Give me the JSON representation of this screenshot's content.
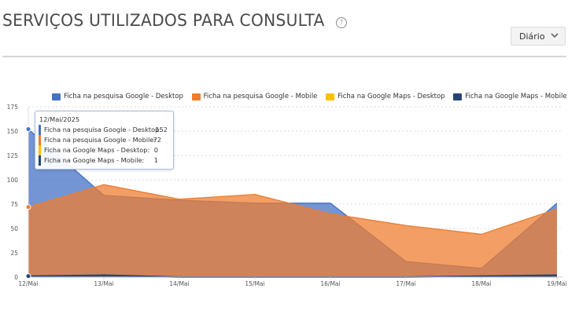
{
  "header": {
    "title": "SERVIÇOS UTILIZADOS PARA CONSULTA",
    "help_icon": "question-circle-icon",
    "period_select": {
      "value": "Diário",
      "icon": "chevron-down-icon"
    }
  },
  "legend": [
    {
      "label": "Ficha na pesquisa Google - Desktop",
      "color": "#4472c4"
    },
    {
      "label": "Ficha na pesquisa Google - Mobile",
      "color": "#ed7d31"
    },
    {
      "label": "Ficha na Google Maps - Desktop",
      "color": "#ffc000"
    },
    {
      "label": "Ficha na Google Maps - Mobile",
      "color": "#264478"
    }
  ],
  "tooltip": {
    "date": "12/Mai/2025",
    "rows": [
      {
        "label": "Ficha na pesquisa Google - Desktop:",
        "value": "152",
        "color": "#4472c4"
      },
      {
        "label": "Ficha na pesquisa Google - Mobile:",
        "value": "72",
        "color": "#ed7d31"
      },
      {
        "label": "Ficha na Google Maps - Desktop:",
        "value": "0",
        "color": "#ffc000"
      },
      {
        "label": "Ficha na Google Maps - Mobile:",
        "value": "1",
        "color": "#264478"
      }
    ]
  },
  "chart_data": {
    "type": "area",
    "title": "SERVIÇOS UTILIZADOS PARA CONSULTA",
    "xlabel": "",
    "ylabel": "",
    "categories": [
      "12/Mai",
      "13/Mai",
      "14/Mai",
      "15/Mai",
      "16/Mai",
      "17/Mai",
      "18/Mai",
      "19/Mai"
    ],
    "yticks": [
      0,
      25,
      50,
      75,
      100,
      125,
      150,
      175
    ],
    "ylim": [
      0,
      175
    ],
    "grid": true,
    "legend_position": "top",
    "series": [
      {
        "name": "Ficha na pesquisa Google - Desktop",
        "color": "#4472c4",
        "values": [
          152,
          84,
          79,
          76,
          76,
          16,
          9,
          76
        ]
      },
      {
        "name": "Ficha na pesquisa Google - Mobile",
        "color": "#ed7d31",
        "values": [
          72,
          95,
          80,
          85,
          65,
          53,
          44,
          70
        ]
      },
      {
        "name": "Ficha na Google Maps - Desktop",
        "color": "#ffc000",
        "values": [
          0,
          0,
          0,
          0,
          0,
          0,
          0,
          0
        ]
      },
      {
        "name": "Ficha na Google Maps - Mobile",
        "color": "#264478",
        "values": [
          1,
          2,
          0,
          0,
          0,
          0,
          1,
          2
        ]
      }
    ],
    "tooltip_active_index": 0
  }
}
